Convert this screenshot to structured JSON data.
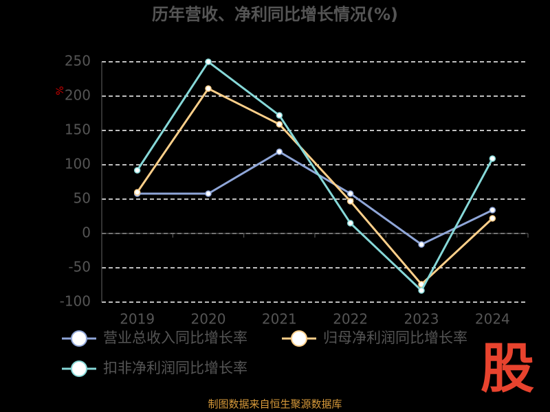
{
  "chart_data": {
    "type": "line",
    "title": "历年营收、净利同比增长情况(%)",
    "y_unit": "%",
    "categories": [
      "2019",
      "2020",
      "2021",
      "2022",
      "2023",
      "2024"
    ],
    "series": [
      {
        "name": "营业总收入同比增长率",
        "color": "#8fa6d8",
        "values": [
          58,
          58,
          119,
          58,
          -16,
          34
        ]
      },
      {
        "name": "归母净利润同比增长率",
        "color": "#ffd08a",
        "values": [
          60,
          211,
          159,
          47,
          -74,
          22
        ]
      },
      {
        "name": "扣非净利润同比增长率",
        "color": "#86d8d8",
        "values": [
          92,
          250,
          172,
          15,
          -83,
          109
        ]
      }
    ],
    "ylim": [
      -100,
      250
    ],
    "yticks": [
      -100,
      -50,
      0,
      50,
      100,
      150,
      200,
      250
    ],
    "grid": true,
    "source": "制图数据来自恒生聚源数据库",
    "logo": "股"
  }
}
